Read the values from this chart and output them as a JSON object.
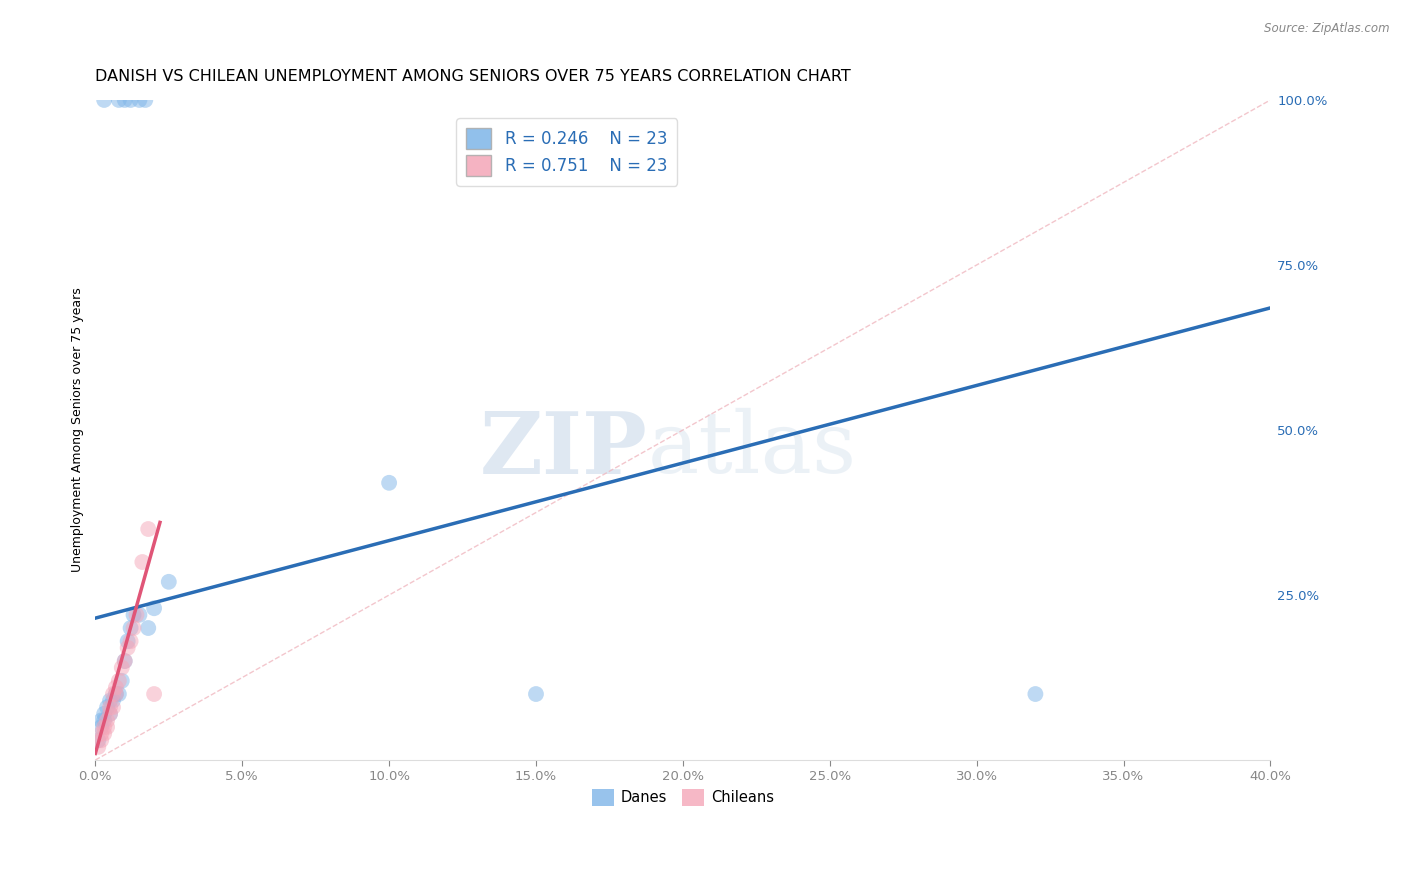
{
  "title": "DANISH VS CHILEAN UNEMPLOYMENT AMONG SENIORS OVER 75 YEARS CORRELATION CHART",
  "source": "Source: ZipAtlas.com",
  "ylabel": "Unemployment Among Seniors over 75 years",
  "xlim": [
    0.0,
    0.4
  ],
  "ylim": [
    0.0,
    1.0
  ],
  "xticks": [
    0.0,
    0.05,
    0.1,
    0.15,
    0.2,
    0.25,
    0.3,
    0.35,
    0.4
  ],
  "yticks_right": [
    0.25,
    0.5,
    0.75,
    1.0
  ],
  "background_color": "#ffffff",
  "grid_color": "#cccccc",
  "watermark_zip": "ZIP",
  "watermark_atlas": "atlas",
  "danes_color": "#7eb5e8",
  "chileans_color": "#f4a6b8",
  "danes_trend_color": "#2a6db5",
  "chileans_trend_color": "#e05577",
  "ref_line_color": "#f0b8c0",
  "danes_x": [
    0.001,
    0.002,
    0.002,
    0.003,
    0.003,
    0.004,
    0.005,
    0.005,
    0.006,
    0.007,
    0.008,
    0.009,
    0.01,
    0.011,
    0.012,
    0.013,
    0.015,
    0.018,
    0.02,
    0.025,
    0.1,
    0.15,
    0.32
  ],
  "danes_y": [
    0.03,
    0.05,
    0.06,
    0.06,
    0.07,
    0.08,
    0.07,
    0.09,
    0.09,
    0.1,
    0.1,
    0.12,
    0.15,
    0.18,
    0.2,
    0.22,
    0.22,
    0.2,
    0.23,
    0.27,
    0.42,
    0.1,
    0.1
  ],
  "danes_top_x": [
    0.003,
    0.008,
    0.01,
    0.012,
    0.015,
    0.017
  ],
  "danes_top_y": [
    1.0,
    1.0,
    1.0,
    1.0,
    1.0,
    1.0
  ],
  "chileans_x": [
    0.001,
    0.002,
    0.002,
    0.003,
    0.003,
    0.004,
    0.004,
    0.005,
    0.005,
    0.006,
    0.006,
    0.007,
    0.007,
    0.008,
    0.009,
    0.01,
    0.011,
    0.012,
    0.013,
    0.014,
    0.016,
    0.018,
    0.02
  ],
  "chileans_y": [
    0.02,
    0.03,
    0.04,
    0.04,
    0.05,
    0.05,
    0.06,
    0.07,
    0.08,
    0.08,
    0.1,
    0.1,
    0.11,
    0.12,
    0.14,
    0.15,
    0.17,
    0.18,
    0.2,
    0.22,
    0.3,
    0.35,
    0.1
  ],
  "danes_trend_x0": 0.0,
  "danes_trend_y0": 0.215,
  "danes_trend_x1": 0.4,
  "danes_trend_y1": 0.685,
  "chileans_trend_x0": 0.0,
  "chileans_trend_y0": 0.01,
  "chileans_trend_x1": 0.022,
  "chileans_trend_y1": 0.36,
  "legend_r_danes": "R = 0.246",
  "legend_n_danes": "N = 23",
  "legend_r_chileans": "R = 0.751",
  "legend_n_chileans": "N = 23",
  "marker_size": 130,
  "marker_alpha": 0.5,
  "title_fontsize": 11.5,
  "label_fontsize": 9,
  "tick_fontsize": 9.5
}
